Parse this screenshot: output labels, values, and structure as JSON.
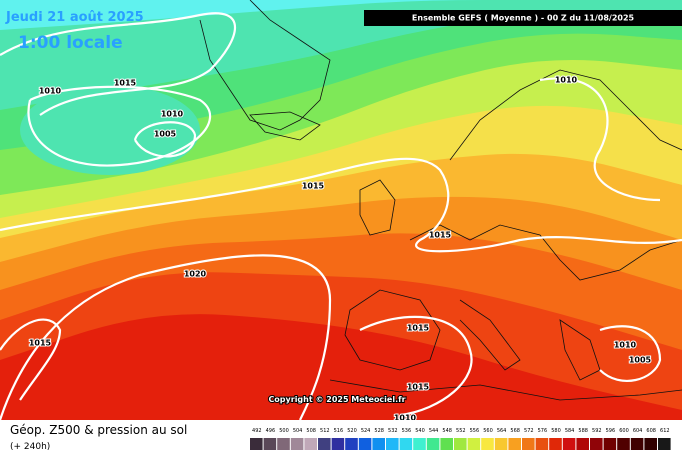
{
  "header": {
    "date": "Jeudi 21 août 2025",
    "time": "1:00 locale",
    "run": "Ensemble GEFS  ( Moyenne )  - 00 Z du 11/08/2025"
  },
  "map": {
    "isobar_labels": [
      "1015",
      "1010",
      "1010",
      "1005",
      "1015",
      "1020",
      "1015",
      "1015",
      "1015",
      "1015",
      "1010",
      "1010",
      "1010",
      "1005"
    ],
    "copyright": "Copyright © 2025 Meteociel.fr"
  },
  "footer": {
    "title": "Géop. Z500 & pression au sol",
    "lead": "(+ 240h)",
    "scale": [
      492,
      496,
      500,
      504,
      508,
      512,
      516,
      520,
      524,
      528,
      532,
      536,
      540,
      544,
      548,
      552,
      556,
      560,
      564,
      568,
      572,
      576,
      580,
      584,
      588,
      592,
      596,
      600,
      604,
      608,
      612
    ]
  }
}
